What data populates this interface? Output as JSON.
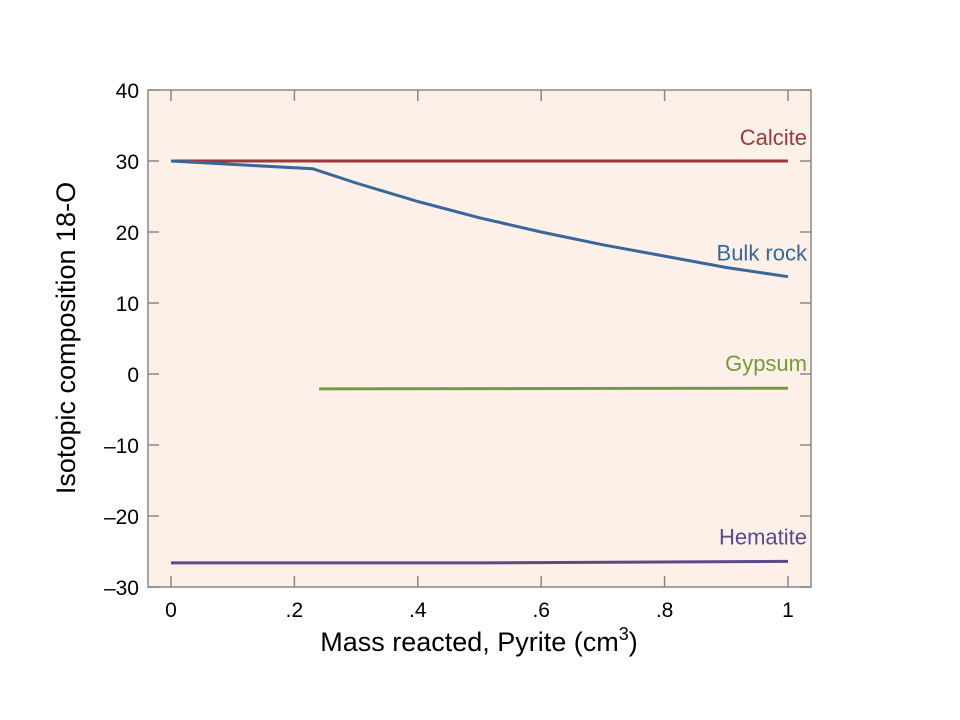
{
  "chart_data": {
    "type": "line",
    "title": "",
    "xlabel_main": "Mass reacted, Pyrite (cm",
    "xlabel_sup": "3",
    "xlabel_close": ")",
    "ylabel": "Isotopic composition 18-O",
    "xlim": [
      0,
      1
    ],
    "ylim": [
      -30,
      40
    ],
    "x_ticks": [
      {
        "value": 0,
        "label": "0"
      },
      {
        "value": 0.2,
        "label": ".2"
      },
      {
        "value": 0.4,
        "label": ".4"
      },
      {
        "value": 0.6,
        "label": ".6"
      },
      {
        "value": 0.8,
        "label": ".8"
      },
      {
        "value": 1,
        "label": "1"
      }
    ],
    "y_ticks": [
      {
        "value": 40,
        "label": "40"
      },
      {
        "value": 30,
        "label": "30"
      },
      {
        "value": 20,
        "label": "20"
      },
      {
        "value": 10,
        "label": "10"
      },
      {
        "value": 0,
        "label": "0"
      },
      {
        "value": -10,
        "label": "–10"
      },
      {
        "value": -20,
        "label": "–20"
      },
      {
        "value": -30,
        "label": "–30"
      }
    ],
    "plot_background": "#fcf0e8",
    "series": [
      {
        "name": "Calcite",
        "color": "#9a3a3a",
        "x": [
          0,
          1
        ],
        "y": [
          30,
          30
        ]
      },
      {
        "name": "Bulk rock",
        "color": "#3a6699",
        "x": [
          0,
          0.23,
          0.3,
          0.4,
          0.5,
          0.6,
          0.7,
          0.8,
          0.9,
          1.0
        ],
        "y": [
          30,
          28.9,
          26.9,
          24.3,
          22.0,
          20.0,
          18.2,
          16.6,
          15.0,
          13.7
        ]
      },
      {
        "name": "Gypsum",
        "color": "#77993a",
        "x": [
          0.24,
          1.0
        ],
        "y": [
          -2.1,
          -2.0
        ]
      },
      {
        "name": "Hematite",
        "color": "#5b4a8a",
        "x": [
          0,
          0.5,
          1.0
        ],
        "y": [
          -26.6,
          -26.6,
          -26.4
        ]
      }
    ]
  }
}
